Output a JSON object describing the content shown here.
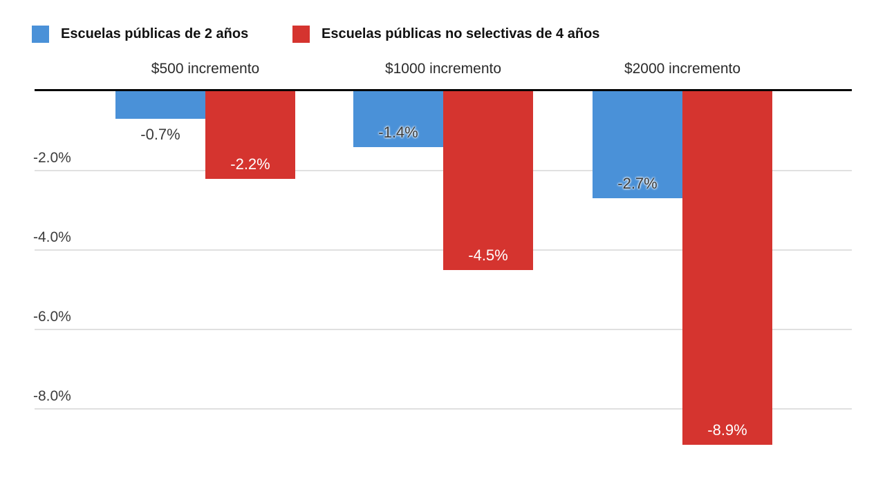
{
  "legend": {
    "items": [
      {
        "label": "Escuelas públicas de 2 años",
        "color": "#4a91d8"
      },
      {
        "label": "Escuelas públicas no selectivas de 4 años",
        "color": "#d5342f"
      }
    ]
  },
  "chart_data": {
    "type": "bar",
    "direction": "negative-down-from-top-baseline",
    "categories": [
      "$500 incremento",
      "$1000 incremento",
      "$2000 incremento"
    ],
    "series": [
      {
        "name": "Escuelas públicas de 2 años",
        "color": "#4a91d8",
        "values": [
          -0.7,
          -1.4,
          -2.7
        ],
        "labels": [
          "-0.7%",
          "-1.4%",
          "-2.7%"
        ]
      },
      {
        "name": "Escuelas públicas no selectivas de 4 años",
        "color": "#d5342f",
        "values": [
          -2.2,
          -4.5,
          -8.9
        ],
        "labels": [
          "-2.2%",
          "-4.5%",
          "-8.9%"
        ]
      }
    ],
    "y_axis": {
      "ticks": [
        -2,
        -4,
        -6,
        -8
      ],
      "tick_labels": [
        "-2.0%",
        "-4.0%",
        "-6.0%",
        "-8.0%"
      ],
      "ylim": [
        0,
        -10
      ]
    },
    "grid": true,
    "legend_position": "top",
    "baseline_value": 0
  },
  "colors": {
    "blue": "#4a91d8",
    "red": "#d5342f",
    "grid": "#e0e0e0",
    "zero_line": "#000000",
    "text_dark": "#3a3a3a",
    "text_white": "#ffffff"
  }
}
